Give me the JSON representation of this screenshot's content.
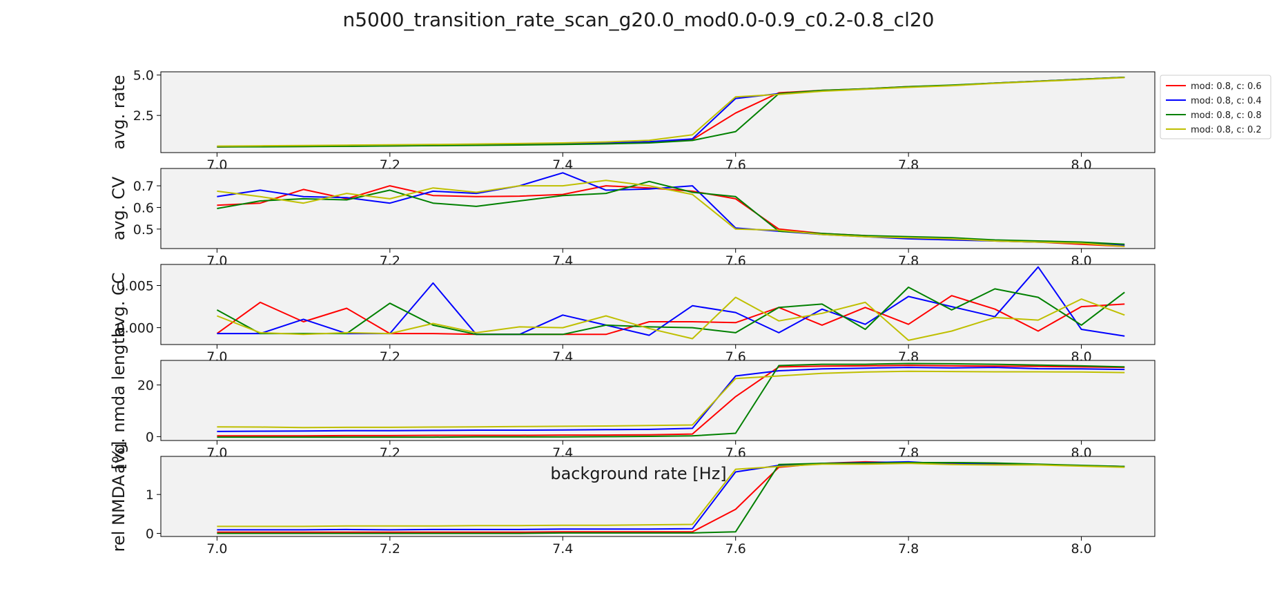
{
  "chart_data": {
    "type": "line",
    "title": "n5000_transition_rate_scan_g20.0_mod0.0-0.9_c0.2-0.8_cl20",
    "xlabel": "background rate [Hz]",
    "xlim": [
      6.935,
      8.085
    ],
    "x_ticks": [
      "7.0",
      "7.2",
      "7.4",
      "7.6",
      "7.8",
      "8.0"
    ],
    "x": [
      7.0,
      7.05,
      7.1,
      7.15,
      7.2,
      7.25,
      7.3,
      7.35,
      7.4,
      7.45,
      7.5,
      7.55,
      7.6,
      7.65,
      7.7,
      7.75,
      7.8,
      7.85,
      7.9,
      7.95,
      8.0,
      8.05
    ],
    "legend": {
      "placement": "outside-right",
      "entries": [
        {
          "label": "mod: 0.8, c: 0.6",
          "color": "#ff0000"
        },
        {
          "label": "mod: 0.8, c: 0.4",
          "color": "#0000ff"
        },
        {
          "label": "mod: 0.8, c: 0.8",
          "color": "#008000"
        },
        {
          "label": "mod: 0.8, c: 0.2",
          "color": "#bfbf00"
        }
      ]
    },
    "panels": [
      {
        "ylabel": "avg. rate",
        "ylim": [
          0.2,
          5.2
        ],
        "y_ticks": [
          {
            "v": 2.5,
            "label": "2.5"
          },
          {
            "v": 5.0,
            "label": "5.0"
          }
        ],
        "series": [
          {
            "values": [
              0.55,
              0.57,
              0.58,
              0.6,
              0.62,
              0.64,
              0.66,
              0.69,
              0.72,
              0.77,
              0.84,
              1.0,
              2.65,
              3.9,
              4.05,
              4.15,
              4.28,
              4.36,
              4.5,
              4.62,
              4.74,
              4.86
            ]
          },
          {
            "values": [
              0.56,
              0.58,
              0.59,
              0.61,
              0.63,
              0.65,
              0.68,
              0.7,
              0.74,
              0.79,
              0.87,
              1.05,
              3.55,
              3.85,
              4.02,
              4.14,
              4.26,
              4.36,
              4.5,
              4.62,
              4.74,
              4.86
            ]
          },
          {
            "values": [
              0.55,
              0.56,
              0.57,
              0.59,
              0.61,
              0.63,
              0.65,
              0.67,
              0.7,
              0.74,
              0.8,
              0.95,
              1.5,
              3.85,
              4.05,
              4.15,
              4.28,
              4.38,
              4.5,
              4.62,
              4.74,
              4.86
            ]
          },
          {
            "values": [
              0.6,
              0.62,
              0.64,
              0.66,
              0.68,
              0.7,
              0.73,
              0.76,
              0.8,
              0.86,
              0.96,
              1.3,
              3.65,
              3.8,
              4.0,
              4.12,
              4.24,
              4.34,
              4.48,
              4.6,
              4.72,
              4.84
            ]
          }
        ]
      },
      {
        "ylabel": "avg. CV",
        "ylim": [
          0.41,
          0.78
        ],
        "y_ticks": [
          {
            "v": 0.5,
            "label": "0.5"
          },
          {
            "v": 0.6,
            "label": "0.6"
          },
          {
            "v": 0.7,
            "label": "0.7"
          }
        ],
        "series": [
          {
            "values": [
              0.61,
              0.62,
              0.683,
              0.64,
              0.7,
              0.655,
              0.65,
              0.652,
              0.66,
              0.7,
              0.69,
              0.675,
              0.64,
              0.5,
              0.48,
              0.47,
              0.46,
              0.455,
              0.445,
              0.44,
              0.43,
              0.42
            ]
          },
          {
            "values": [
              0.65,
              0.68,
              0.65,
              0.645,
              0.62,
              0.675,
              0.665,
              0.7,
              0.76,
              0.68,
              0.685,
              0.7,
              0.505,
              0.49,
              0.475,
              0.465,
              0.455,
              0.45,
              0.445,
              0.44,
              0.435,
              0.425
            ]
          },
          {
            "values": [
              0.595,
              0.63,
              0.64,
              0.635,
              0.68,
              0.62,
              0.605,
              0.63,
              0.655,
              0.665,
              0.72,
              0.67,
              0.65,
              0.49,
              0.48,
              0.47,
              0.465,
              0.46,
              0.45,
              0.445,
              0.44,
              0.43
            ]
          },
          {
            "values": [
              0.675,
              0.65,
              0.62,
              0.665,
              0.64,
              0.69,
              0.67,
              0.7,
              0.7,
              0.725,
              0.7,
              0.66,
              0.5,
              0.495,
              0.475,
              0.465,
              0.46,
              0.455,
              0.445,
              0.44,
              0.435,
              0.42
            ]
          }
        ]
      },
      {
        "ylabel": "avg. CC",
        "ylim": [
          -0.002,
          0.0075
        ],
        "y_ticks": [
          {
            "v": 0.0,
            "label": "0.000"
          },
          {
            "v": 0.005,
            "label": "0.005"
          }
        ],
        "series": [
          {
            "values": [
              -0.0007,
              0.003,
              0.0007,
              0.0023,
              -0.0007,
              -0.0007,
              -0.0008,
              -0.0008,
              -0.0008,
              -0.0008,
              0.0007,
              0.0007,
              0.0006,
              0.0024,
              0.0003,
              0.0024,
              0.0004,
              0.0038,
              0.0022,
              -0.0004,
              0.0025,
              0.0028
            ]
          },
          {
            "values": [
              -0.0007,
              -0.0007,
              0.001,
              -0.0007,
              -0.0007,
              0.0053,
              -0.0008,
              -0.0008,
              0.0015,
              0.0003,
              -0.0009,
              0.0026,
              0.0018,
              -0.0006,
              0.0022,
              0.0004,
              0.0037,
              0.0025,
              0.0013,
              0.0072,
              -0.0002,
              -0.001
            ]
          },
          {
            "values": [
              0.0021,
              -0.0007,
              -0.0007,
              -0.0007,
              0.0029,
              0.0003,
              -0.0008,
              -0.0008,
              -0.0008,
              0.0003,
              0.0001,
              0.0,
              -0.0006,
              0.0024,
              0.0028,
              -0.0002,
              0.0048,
              0.0021,
              0.0046,
              0.0036,
              0.0003,
              0.0042
            ]
          },
          {
            "values": [
              0.0014,
              -0.0006,
              -0.0008,
              -0.0006,
              -0.0007,
              0.0005,
              -0.0006,
              0.0001,
              0.0,
              0.0014,
              -0.0001,
              -0.0013,
              0.0036,
              0.0008,
              0.0017,
              0.003,
              -0.0015,
              -0.0004,
              0.0012,
              0.0009,
              0.0034,
              0.0015
            ]
          }
        ]
      },
      {
        "ylabel": "avg. nmda length",
        "ylim": [
          -1.5,
          29.5
        ],
        "y_ticks": [
          {
            "v": 0,
            "label": "0"
          },
          {
            "v": 20,
            "label": "20"
          }
        ],
        "series": [
          {
            "values": [
              0.3,
              0.3,
              0.3,
              0.4,
              0.4,
              0.5,
              0.5,
              0.5,
              0.6,
              0.6,
              0.7,
              1.0,
              15.5,
              27.0,
              27.3,
              27.4,
              27.6,
              27.4,
              27.3,
              27.2,
              27.0,
              26.8
            ]
          },
          {
            "values": [
              2.0,
              2.1,
              2.2,
              2.3,
              2.3,
              2.4,
              2.5,
              2.5,
              2.6,
              2.7,
              2.8,
              3.2,
              23.5,
              25.5,
              26.2,
              26.5,
              26.8,
              26.6,
              26.8,
              26.3,
              26.2,
              26.0
            ]
          },
          {
            "values": [
              -0.2,
              -0.2,
              -0.2,
              -0.2,
              -0.2,
              -0.2,
              -0.1,
              -0.1,
              -0.1,
              0.0,
              0.1,
              0.3,
              1.3,
              27.5,
              28.0,
              28.0,
              28.3,
              28.2,
              28.0,
              27.7,
              27.4,
              27.0
            ]
          },
          {
            "values": [
              3.8,
              3.7,
              3.5,
              3.6,
              3.6,
              3.7,
              3.8,
              3.9,
              4.0,
              4.1,
              4.3,
              4.5,
              22.5,
              23.5,
              24.5,
              25.0,
              25.3,
              25.2,
              25.1,
              25.1,
              25.0,
              24.8
            ]
          }
        ]
      },
      {
        "ylabel": "rel NMDA [%]",
        "ylim": [
          -0.08,
          1.98
        ],
        "y_ticks": [
          {
            "v": 0,
            "label": "0"
          },
          {
            "v": 1,
            "label": "1"
          }
        ],
        "series": [
          {
            "values": [
              0.03,
              0.03,
              0.03,
              0.03,
              0.03,
              0.03,
              0.03,
              0.03,
              0.04,
              0.04,
              0.04,
              0.04,
              0.62,
              1.7,
              1.8,
              1.84,
              1.82,
              1.8,
              1.79,
              1.77,
              1.74,
              1.72
            ]
          },
          {
            "values": [
              0.09,
              0.09,
              0.09,
              0.1,
              0.09,
              0.1,
              0.1,
              0.1,
              0.11,
              0.11,
              0.11,
              0.12,
              1.58,
              1.75,
              1.8,
              1.82,
              1.84,
              1.78,
              1.8,
              1.77,
              1.74,
              1.72
            ]
          },
          {
            "values": [
              0.0,
              0.0,
              0.0,
              0.0,
              0.0,
              0.0,
              0.0,
              0.0,
              0.01,
              0.01,
              0.01,
              0.01,
              0.04,
              1.77,
              1.8,
              1.81,
              1.82,
              1.82,
              1.81,
              1.78,
              1.75,
              1.72
            ]
          },
          {
            "values": [
              0.18,
              0.18,
              0.18,
              0.19,
              0.19,
              0.19,
              0.2,
              0.2,
              0.21,
              0.21,
              0.22,
              0.23,
              1.65,
              1.72,
              1.78,
              1.78,
              1.8,
              1.77,
              1.76,
              1.76,
              1.73,
              1.7
            ]
          }
        ]
      }
    ]
  }
}
